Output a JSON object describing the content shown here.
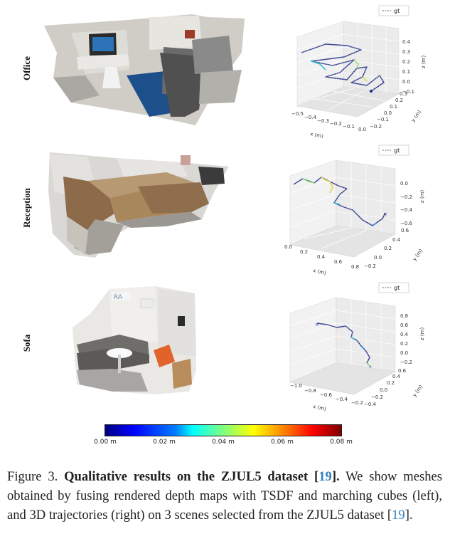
{
  "figure": {
    "rows": [
      {
        "label": "Office",
        "legend": "gt",
        "axes": {
          "x_label": "x (m)",
          "y_label": "y (m)",
          "z_label": "z (m)",
          "x_ticks": [
            "−0.5",
            "−0.4",
            "−0.3",
            "−0.2",
            "−0.1",
            "0.0"
          ],
          "y_ticks": [
            "−0.2",
            "−0.1",
            "0.0",
            "0.1",
            "0.2",
            "0.3"
          ],
          "z_ticks": [
            "0.4",
            "0.3",
            "0.2",
            "0.1",
            "0.0",
            "−0.1"
          ]
        }
      },
      {
        "label": "Reception",
        "legend": "gt",
        "axes": {
          "x_label": "x (m)",
          "y_label": "y (m)",
          "z_label": "z (m)",
          "x_ticks": [
            "0.0",
            "0.2",
            "0.4",
            "0.6",
            "0.8"
          ],
          "y_ticks": [
            "−0.2",
            "0.0",
            "0.2",
            "0.4",
            "0.6"
          ],
          "z_ticks": [
            "0.0",
            "−0.2",
            "−0.4",
            "−0.6"
          ]
        }
      },
      {
        "label": "Sofa",
        "legend": "gt",
        "axes": {
          "x_label": "x (m)",
          "y_label": "y (m)",
          "z_label": "z (m)",
          "x_ticks": [
            "−1.0",
            "−0.8",
            "−0.6",
            "−0.4",
            "−0.2"
          ],
          "y_ticks": [
            "−0.4",
            "−0.2",
            "0.0",
            "0.2",
            "0.4",
            "0.6"
          ],
          "z_ticks": [
            "0.8",
            "0.6",
            "0.4",
            "0.2",
            "0.0",
            "−0.2"
          ]
        }
      }
    ],
    "colorbar": {
      "ticks": [
        "0.00 m",
        "0.02 m",
        "0.04 m",
        "0.06 m",
        "0.08 m"
      ],
      "colormap": "jet"
    }
  },
  "caption": {
    "prefix": "Figure 3.",
    "bold": "Qualitative results on the ZJUL5 dataset [",
    "ref1": "19",
    "bold_end": "].",
    "text": "We show meshes obtained by fusing rendered depth maps with TSDF and marching cubes (left), and 3D trajectories (right) on 3 scenes selected from the ZJUL5 dataset [",
    "ref2": "19",
    "end": "]."
  }
}
